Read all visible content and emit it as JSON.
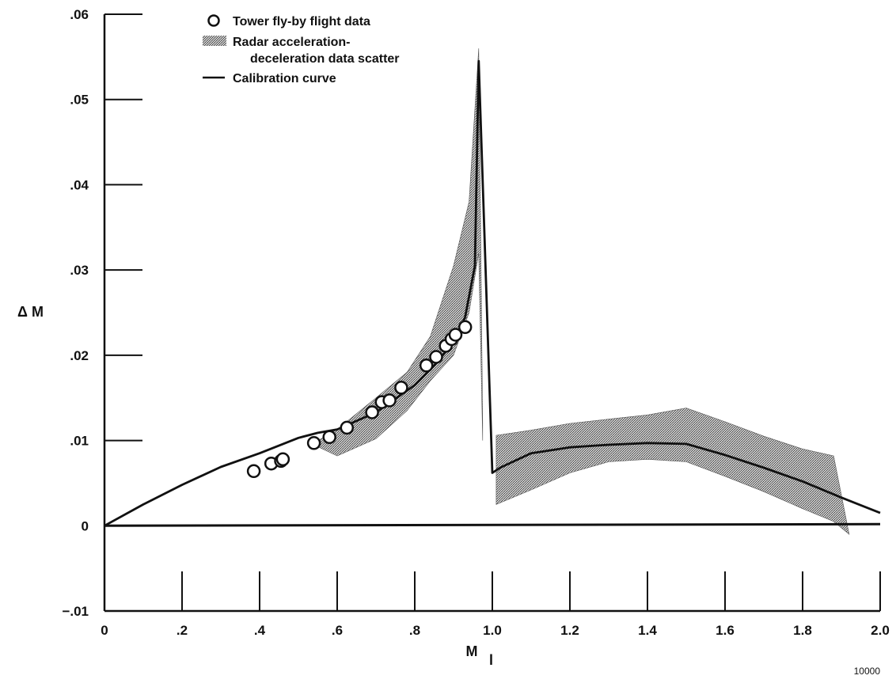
{
  "chart_data": {
    "type": "line",
    "xlabel": "M",
    "xlabel_subscript": "l",
    "ylabel": "Δ M",
    "xlim": [
      0,
      2.0
    ],
    "ylim": [
      -0.01,
      0.06
    ],
    "x_ticks": [
      0,
      0.2,
      0.4,
      0.6,
      0.8,
      1.0,
      1.2,
      1.4,
      1.6,
      1.8,
      2.0
    ],
    "x_tick_labels": [
      "0",
      ".2",
      ".4",
      ".6",
      ".8",
      "1.0",
      "1.2",
      "1.4",
      "1.6",
      "1.8",
      "2.0"
    ],
    "y_ticks": [
      -0.01,
      0,
      0.01,
      0.02,
      0.03,
      0.04,
      0.05,
      0.06
    ],
    "y_tick_labels": [
      "−.01",
      "0",
      ".01",
      ".02",
      ".03",
      ".04",
      ".05",
      ".06"
    ],
    "grid": false,
    "legend_position": "top-left",
    "legend": [
      {
        "marker": "circle",
        "label": "Tower fly-by flight data"
      },
      {
        "marker": "hatched-band",
        "label": "Radar acceleration-",
        "label_continued": "deceleration data scatter"
      },
      {
        "marker": "line",
        "label": "Calibration curve"
      }
    ],
    "series": [
      {
        "name": "Calibration curve",
        "kind": "line",
        "x": [
          0,
          0.1,
          0.2,
          0.3,
          0.4,
          0.5,
          0.55,
          0.6,
          0.7,
          0.8,
          0.85,
          0.9,
          0.93,
          0.955,
          0.965,
          1.0,
          1.02,
          1.1,
          1.2,
          1.3,
          1.4,
          1.5,
          1.6,
          1.7,
          1.8,
          1.9,
          2.0
        ],
        "y": [
          0,
          0.0025,
          0.0048,
          0.0069,
          0.0085,
          0.0103,
          0.0109,
          0.0113,
          0.0133,
          0.0165,
          0.0188,
          0.0215,
          0.0245,
          0.0305,
          0.0545,
          0.0062,
          0.0068,
          0.0085,
          0.0092,
          0.0095,
          0.0097,
          0.0096,
          0.0083,
          0.0068,
          0.0052,
          0.0033,
          0.0015
        ]
      },
      {
        "name": "Tower fly-by flight data",
        "kind": "scatter",
        "x": [
          0.385,
          0.43,
          0.455,
          0.46,
          0.54,
          0.58,
          0.625,
          0.69,
          0.715,
          0.735,
          0.765,
          0.83,
          0.855,
          0.88,
          0.895,
          0.905,
          0.93
        ],
        "y": [
          0.0064,
          0.0073,
          0.0076,
          0.0078,
          0.0097,
          0.0104,
          0.0115,
          0.0133,
          0.0145,
          0.0147,
          0.0162,
          0.0188,
          0.0198,
          0.0211,
          0.0219,
          0.0224,
          0.0233
        ]
      },
      {
        "name": "Radar acceleration-deceleration data scatter",
        "kind": "band",
        "segments": [
          {
            "x": [
              0.54,
              0.6,
              0.7,
              0.78,
              0.84,
              0.9,
              0.94,
              0.965,
              0.975
            ],
            "upper": [
              0.0097,
              0.0113,
              0.015,
              0.018,
              0.0222,
              0.0305,
              0.038,
              0.056,
              0.012
            ],
            "lower": [
              0.0095,
              0.0082,
              0.0102,
              0.0135,
              0.017,
              0.02,
              0.025,
              0.032,
              0.01
            ]
          },
          {
            "x": [
              1.01,
              1.1,
              1.2,
              1.3,
              1.4,
              1.5,
              1.6,
              1.7,
              1.8,
              1.88,
              1.92
            ],
            "upper": [
              0.0106,
              0.0112,
              0.012,
              0.0125,
              0.013,
              0.0138,
              0.0122,
              0.0105,
              0.009,
              0.0082,
              -0.001
            ],
            "lower": [
              0.0025,
              0.0042,
              0.0062,
              0.0075,
              0.0078,
              0.0075,
              0.0058,
              0.004,
              0.002,
              0.0005,
              -0.001
            ]
          }
        ]
      }
    ],
    "figure_number": "10000"
  }
}
